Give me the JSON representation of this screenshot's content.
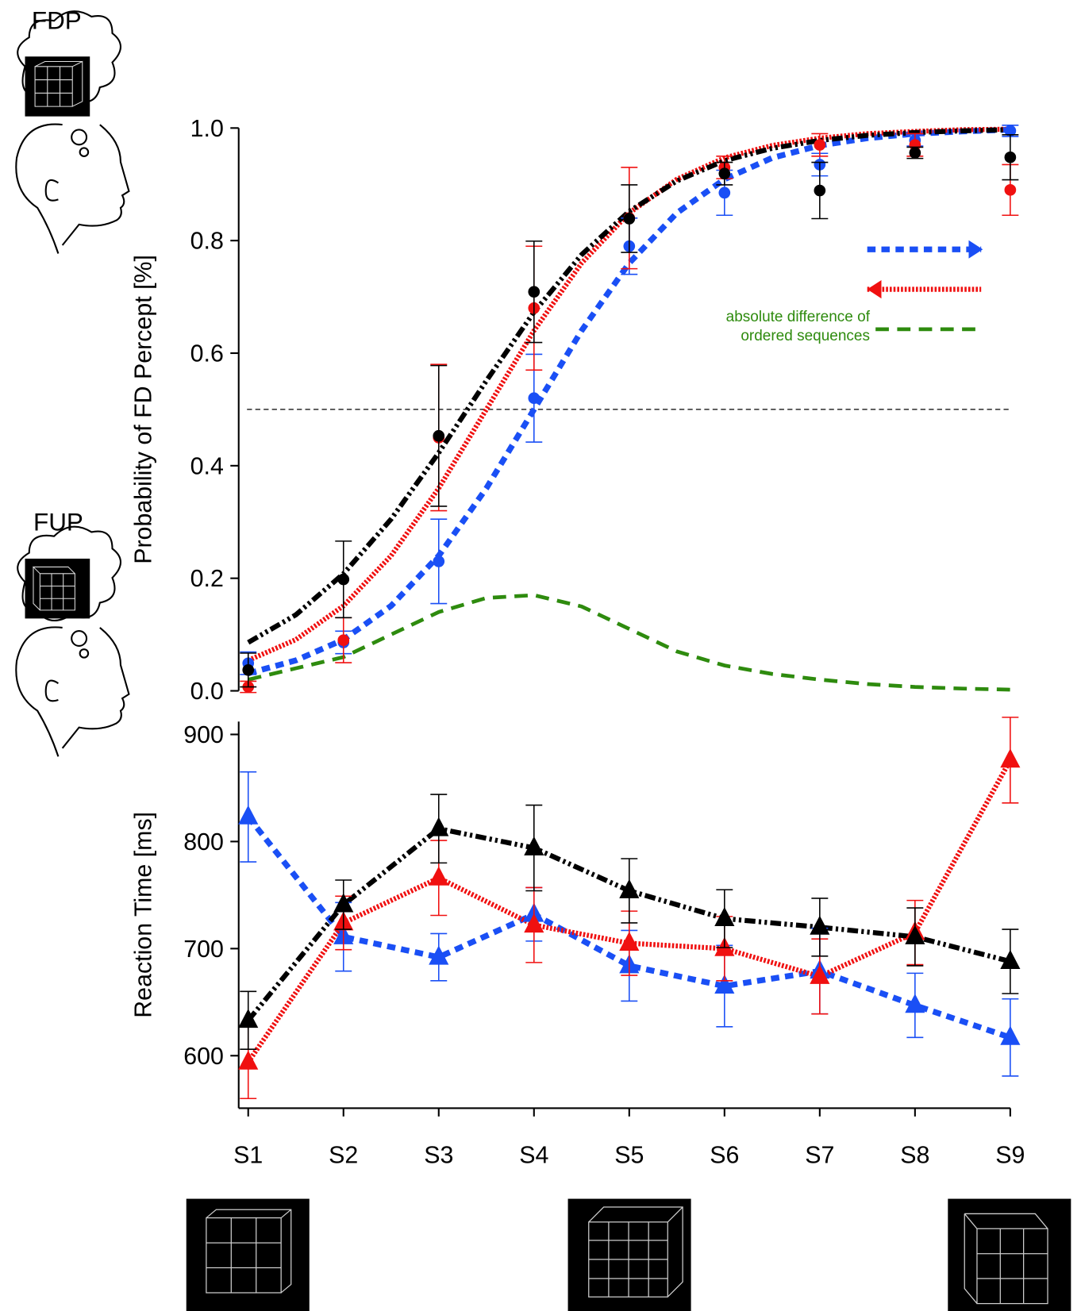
{
  "annotations": {
    "fdp": "FDP",
    "fup": "FUP"
  },
  "chart_data": [
    {
      "type": "line",
      "ylabel": "Probability of FD Percept [%]",
      "xlim": [
        0.9,
        9
      ],
      "ylim": [
        0,
        1
      ],
      "yticks": [
        {
          "value": 0,
          "label": "0.0"
        },
        0.2,
        0.4,
        0.6,
        0.8,
        {
          "value": 1,
          "label": "1.0"
        }
      ],
      "hline": 0.5,
      "series": [
        {
          "color": "#1a4ff5",
          "marker": "circle",
          "x": [
            1,
            2,
            3,
            4,
            5,
            6,
            7,
            8,
            9
          ],
          "values": [
            0.049,
            0.086,
            0.23,
            0.52,
            0.79,
            0.885,
            0.935,
            0.978,
            0.995
          ],
          "errors": [
            0.02,
            0.02,
            0.075,
            0.078,
            0.05,
            0.04,
            0.02,
            0.01,
            0.01
          ]
        },
        {
          "color": "#f01010",
          "marker": "circle",
          "x": [
            1,
            2,
            3,
            4,
            5,
            6,
            7,
            8,
            9
          ],
          "values": [
            0.007,
            0.09,
            0.45,
            0.68,
            0.84,
            0.93,
            0.97,
            0.97,
            0.89
          ],
          "errors": [
            0.01,
            0.04,
            0.13,
            0.11,
            0.09,
            0.02,
            0.02,
            0.02,
            0.045
          ]
        },
        {
          "color": "#000000",
          "marker": "circle",
          "x": [
            1,
            2,
            3,
            4,
            5,
            6,
            7,
            8,
            9
          ],
          "values": [
            0.037,
            0.198,
            0.453,
            0.709,
            0.839,
            0.919,
            0.889,
            0.956,
            0.948
          ],
          "errors": [
            0.03,
            0.068,
            0.125,
            0.09,
            0.06,
            0.02,
            0.05,
            0.01,
            0.04
          ]
        },
        {
          "color": "#1a4ff5",
          "style": "dashed",
          "legend_arrow": "right",
          "x": [
            1,
            1.5,
            2,
            2.5,
            3,
            3.5,
            4,
            4.5,
            5,
            5.5,
            6,
            6.5,
            7,
            7.5,
            8,
            8.5,
            9
          ],
          "values": [
            0.031,
            0.054,
            0.091,
            0.151,
            0.24,
            0.36,
            0.5,
            0.64,
            0.76,
            0.849,
            0.909,
            0.947,
            0.969,
            0.982,
            0.99,
            0.994,
            0.997
          ]
        },
        {
          "color": "#f01010",
          "style": "dotted",
          "legend_arrow": "left",
          "x": [
            1,
            1.5,
            2,
            2.5,
            3,
            3.5,
            4,
            4.5,
            5,
            5.5,
            6,
            6.5,
            7,
            7.5,
            8,
            8.5,
            9
          ],
          "values": [
            0.054,
            0.091,
            0.151,
            0.24,
            0.36,
            0.5,
            0.64,
            0.76,
            0.849,
            0.909,
            0.947,
            0.969,
            0.982,
            0.99,
            0.994,
            0.997,
            0.998
          ]
        },
        {
          "color": "#000000",
          "style": "dash-dot-dot",
          "x": [
            1,
            1.5,
            2,
            2.5,
            3,
            3.5,
            4,
            4.5,
            5,
            5.5,
            6,
            6.5,
            7,
            7.5,
            8,
            8.5,
            9
          ],
          "values": [
            0.086,
            0.135,
            0.208,
            0.305,
            0.423,
            0.551,
            0.673,
            0.775,
            0.852,
            0.906,
            0.942,
            0.964,
            0.978,
            0.987,
            0.992,
            0.995,
            0.997
          ]
        },
        {
          "name": "absolute difference of ordered sequences",
          "color": "#2e8b0e",
          "style": "wide-dashed",
          "x": [
            1,
            1.5,
            2,
            2.5,
            3,
            3.5,
            4,
            4.5,
            5,
            5.5,
            6,
            6.5,
            7,
            7.5,
            8,
            8.5,
            9
          ],
          "values": [
            0.02,
            0.04,
            0.06,
            0.1,
            0.14,
            0.165,
            0.17,
            0.15,
            0.11,
            0.07,
            0.045,
            0.03,
            0.02,
            0.012,
            0.007,
            0.004,
            0.002
          ]
        }
      ]
    },
    {
      "type": "line",
      "ylabel": "Reaction Time [ms]",
      "xlim": [
        0.9,
        9
      ],
      "ylim": [
        551,
        912
      ],
      "yticks": [
        600,
        700,
        800,
        900
      ],
      "xticks": [
        {
          "value": 1,
          "label": "S1"
        },
        {
          "value": 2,
          "label": "S2"
        },
        {
          "value": 3,
          "label": "S3"
        },
        {
          "value": 4,
          "label": "S4"
        },
        {
          "value": 5,
          "label": "S5"
        },
        {
          "value": 6,
          "label": "S6"
        },
        {
          "value": 7,
          "label": "S7"
        },
        {
          "value": 8,
          "label": "S8"
        },
        {
          "value": 9,
          "label": "S9"
        }
      ],
      "series": [
        {
          "color": "#1a4ff5",
          "style": "dashed",
          "marker": "triangle",
          "x": [
            1,
            2,
            3,
            4,
            5,
            6,
            7,
            8,
            9
          ],
          "values": [
            823,
            711,
            692,
            732,
            684,
            665,
            679,
            647,
            617
          ],
          "errors": [
            42,
            32,
            22,
            25,
            33,
            38,
            40,
            30,
            36
          ]
        },
        {
          "color": "#f01010",
          "style": "dotted",
          "marker": "triangle",
          "x": [
            1,
            2,
            3,
            4,
            5,
            6,
            7,
            8,
            9
          ],
          "values": [
            594,
            724,
            766,
            722,
            705,
            700,
            674,
            715,
            876
          ],
          "errors": [
            34,
            25,
            35,
            35,
            30,
            30,
            35,
            30,
            40
          ]
        },
        {
          "color": "#000000",
          "style": "dash-dot-dot",
          "marker": "triangle",
          "x": [
            1,
            2,
            3,
            4,
            5,
            6,
            7,
            8,
            9
          ],
          "values": [
            633,
            741,
            812,
            794,
            754,
            728,
            720,
            711,
            688
          ],
          "errors": [
            27,
            23,
            32,
            40,
            30,
            27,
            27,
            27,
            30
          ]
        }
      ]
    }
  ]
}
